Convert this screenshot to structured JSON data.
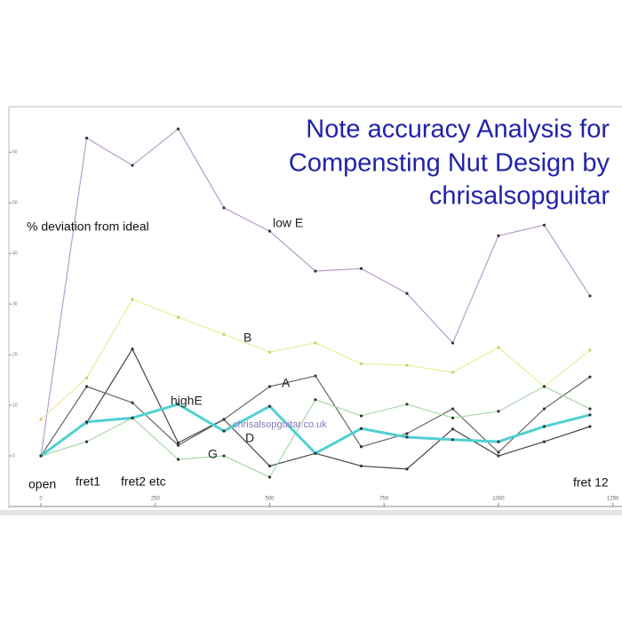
{
  "chart_data": {
    "type": "line",
    "title": [
      "Note accuracy Analysis for",
      "Compensting Nut Design by",
      "chrisalsopguitar"
    ],
    "annotations": [
      "% deviation from ideal",
      "open",
      "fret1",
      "fret2 etc",
      "fret 12",
      "chrisalsopguitar.co.uk"
    ],
    "x": [
      0,
      100,
      200,
      300,
      400,
      500,
      600,
      700,
      800,
      900,
      1000,
      1100,
      1200
    ],
    "xlim": [
      -70,
      1270
    ],
    "xticks": [
      0,
      250,
      500,
      750,
      1000,
      1250
    ],
    "ylim": [
      -10,
      69
    ],
    "yticks": [
      0,
      10,
      20,
      30,
      40,
      50,
      60
    ],
    "series": [
      {
        "name": "low E",
        "color": "#b89cc8",
        "values": [
          0,
          62.8,
          57.4,
          64.6,
          49.0,
          44.4,
          36.5,
          37.0,
          32.1,
          22.3,
          43.5,
          45.6,
          31.6
        ]
      },
      {
        "name": "B",
        "color": "#ecec9a",
        "values": [
          7.2,
          15.4,
          30.9,
          27.4,
          24.0,
          20.5,
          22.3,
          18.2,
          17.9,
          16.5,
          21.4,
          13.7,
          20.9
        ]
      },
      {
        "name": "A",
        "color": "#666666",
        "values": [
          0,
          13.7,
          10.5,
          2.1,
          7.2,
          13.7,
          15.8,
          1.8,
          4.4,
          9.3,
          0.7,
          9.3,
          15.6
        ]
      },
      {
        "name": "D",
        "color": "#444444",
        "values": [
          0,
          6.5,
          21.1,
          2.6,
          7.2,
          -2.0,
          0.5,
          -2.0,
          -2.6,
          5.3,
          0,
          2.8,
          5.8
        ]
      },
      {
        "name": "G",
        "color": "#a8d8a8",
        "values": [
          0,
          2.8,
          7.5,
          -0.7,
          0,
          -4.2,
          11.1,
          7.9,
          10.2,
          7.5,
          8.8,
          13.7,
          9.3
        ]
      },
      {
        "name": "highE",
        "color": "#4fd0d4",
        "values": [
          0,
          6.7,
          7.5,
          10.2,
          4.9,
          9.8,
          0.5,
          5.4,
          3.7,
          3.2,
          2.8,
          5.8,
          8.1
        ]
      }
    ]
  }
}
